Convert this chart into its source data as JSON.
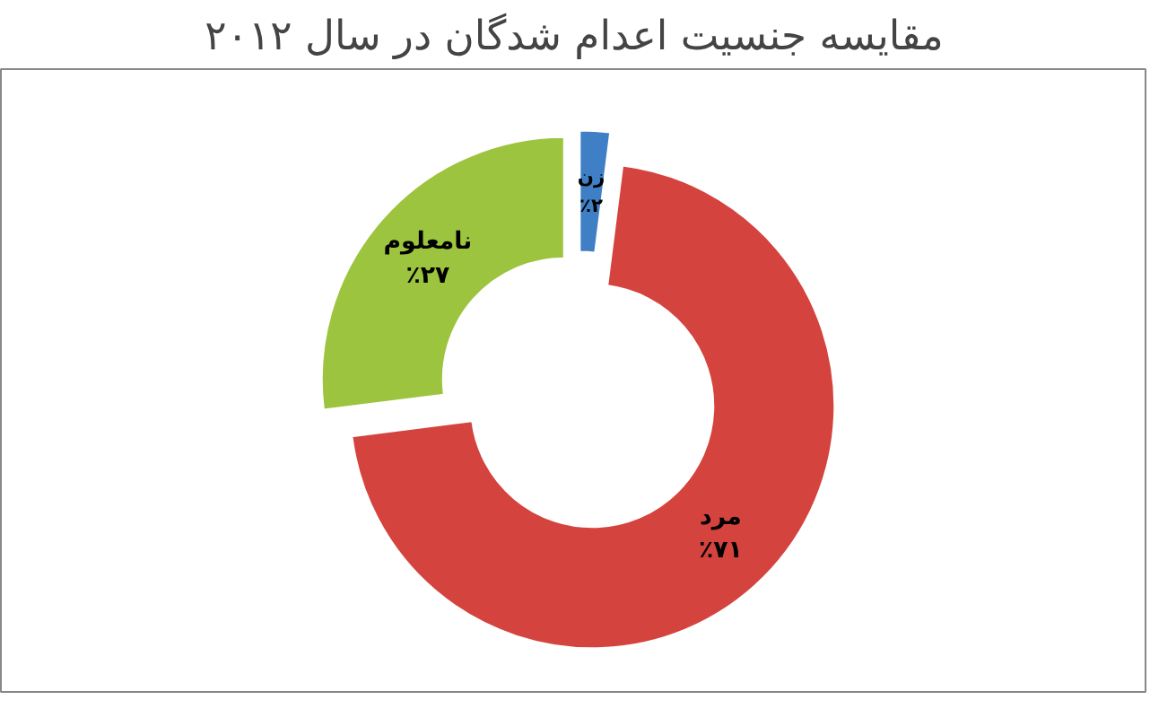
{
  "chart_data": {
    "type": "donut",
    "title": "مقایسه جنسیت اعدام شدگان در سال ۲۰۱۲",
    "categories": [
      "زن",
      "مرد",
      "نامعلوم"
    ],
    "values": [
      2,
      71,
      27
    ],
    "colors": [
      "#3f7fc6",
      "#d4433d",
      "#9cc43e"
    ],
    "value_labels": [
      "٪۲",
      "٪۷۱",
      "٪۲۷"
    ]
  }
}
